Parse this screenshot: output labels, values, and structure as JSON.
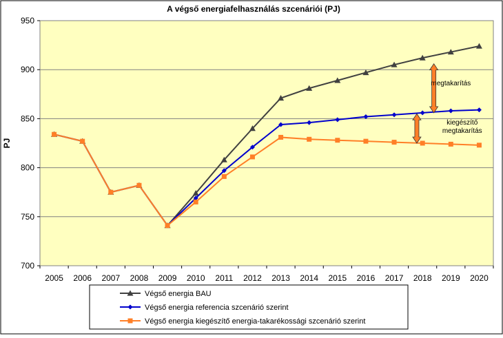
{
  "chart_data": {
    "type": "line",
    "title": "A végső energiafelhasználás szcenáriói (PJ)",
    "ylabel": "PJ",
    "xlabel": "",
    "ylim": [
      700,
      950
    ],
    "yticks": [
      700,
      750,
      800,
      850,
      900,
      950
    ],
    "grid": true,
    "legend_position": "bottom",
    "categories": [
      "2005",
      "2006",
      "2007",
      "2008",
      "2009",
      "2010",
      "2011",
      "2012",
      "2013",
      "2014",
      "2015",
      "2016",
      "2017",
      "2018",
      "2019",
      "2020"
    ],
    "series": [
      {
        "name": "Végső energia BAU",
        "color": "#404040",
        "marker": "triangle",
        "values": [
          834,
          827,
          775,
          782,
          741,
          774,
          808,
          840,
          871,
          881,
          889,
          897,
          905,
          912,
          918,
          924
        ]
      },
      {
        "name": "Végső energia referencia szcenárió szerint",
        "color": "#0000cc",
        "marker": "diamond",
        "values": [
          834,
          827,
          775,
          782,
          741,
          769,
          797,
          821,
          844,
          846,
          849,
          852,
          854,
          856,
          858,
          859
        ]
      },
      {
        "name": "Végső energia kiegészítő energia-takarékossági szcenárió szerint",
        "color": "#ff7f27",
        "marker": "square",
        "values": [
          834,
          827,
          775,
          782,
          741,
          765,
          791,
          811,
          831,
          829,
          828,
          827,
          826,
          825,
          824,
          823
        ]
      }
    ],
    "annotations": [
      {
        "text": "megtakarítás",
        "x_index": 14,
        "y": 884,
        "arrow_from": 856,
        "arrow_to": 906,
        "arrow_x_index": 13.4,
        "color": "#ff7f27"
      },
      {
        "text_lines": [
          "kiegészítő",
          "megtakarítás"
        ],
        "x_index": 14.4,
        "y": 844,
        "arrow_from": 825,
        "arrow_to": 855,
        "arrow_x_index": 12.8,
        "color": "#ff7f27"
      }
    ],
    "colors": {
      "plot_bg": "#ffffc0",
      "frame_bg": "#ffffff",
      "grid": "#808080",
      "text": "#000000"
    }
  }
}
